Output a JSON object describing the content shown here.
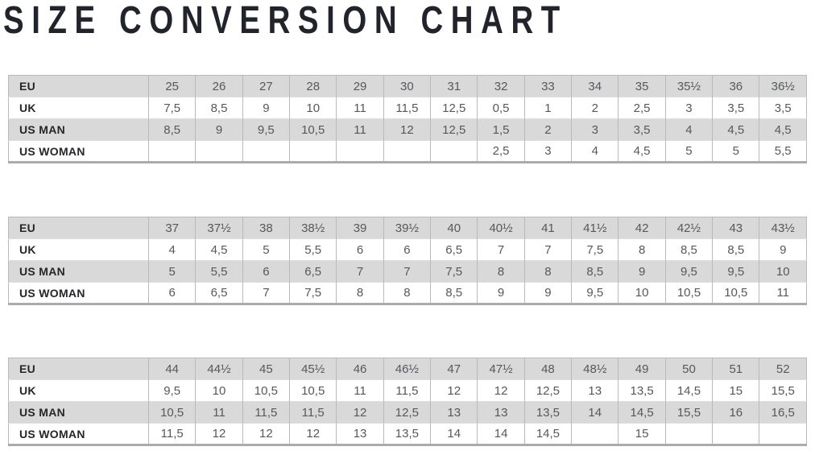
{
  "title": "SIZE CONVERSION CHART",
  "colors": {
    "title_text": "#21242b",
    "label_text": "#26262a",
    "value_text": "#55585c",
    "row_shaded_bg": "#d9d9d9",
    "row_plain_bg": "#ffffff",
    "border_light": "#b9b9b9",
    "border_strong": "#ababab"
  },
  "chart_data": [
    {
      "type": "table",
      "title": "SIZE CONVERSION CHART",
      "row_headers": [
        "EU",
        "UK",
        "US MAN",
        "US WOMAN"
      ],
      "rows": [
        [
          "25",
          "26",
          "27",
          "28",
          "29",
          "30",
          "31",
          "32",
          "33",
          "34",
          "35",
          "35½",
          "36",
          "36½"
        ],
        [
          "7,5",
          "8,5",
          "9",
          "10",
          "11",
          "11,5",
          "12,5",
          "0,5",
          "1",
          "2",
          "2,5",
          "3",
          "3,5",
          "3,5"
        ],
        [
          "8,5",
          "9",
          "9,5",
          "10,5",
          "11",
          "12",
          "12,5",
          "1,5",
          "2",
          "3",
          "3,5",
          "4",
          "4,5",
          "4,5"
        ],
        [
          "",
          "",
          "",
          "",
          "",
          "",
          "",
          "2,5",
          "3",
          "4",
          "4,5",
          "5",
          "5",
          "5,5"
        ]
      ]
    },
    {
      "type": "table",
      "row_headers": [
        "EU",
        "UK",
        "US MAN",
        "US WOMAN"
      ],
      "rows": [
        [
          "37",
          "37½",
          "38",
          "38½",
          "39",
          "39½",
          "40",
          "40½",
          "41",
          "41½",
          "42",
          "42½",
          "43",
          "43½"
        ],
        [
          "4",
          "4,5",
          "5",
          "5,5",
          "6",
          "6",
          "6,5",
          "7",
          "7",
          "7,5",
          "8",
          "8,5",
          "8,5",
          "9"
        ],
        [
          "5",
          "5,5",
          "6",
          "6,5",
          "7",
          "7",
          "7,5",
          "8",
          "8",
          "8,5",
          "9",
          "9,5",
          "9,5",
          "10"
        ],
        [
          "6",
          "6,5",
          "7",
          "7,5",
          "8",
          "8",
          "8,5",
          "9",
          "9",
          "9,5",
          "10",
          "10,5",
          "10,5",
          "11"
        ]
      ]
    },
    {
      "type": "table",
      "row_headers": [
        "EU",
        "UK",
        "US MAN",
        "US WOMAN"
      ],
      "rows": [
        [
          "44",
          "44½",
          "45",
          "45½",
          "46",
          "46½",
          "47",
          "47½",
          "48",
          "48½",
          "49",
          "50",
          "51",
          "52"
        ],
        [
          "9,5",
          "10",
          "10,5",
          "10,5",
          "11",
          "11,5",
          "12",
          "12",
          "12,5",
          "13",
          "13,5",
          "14,5",
          "15",
          "15,5"
        ],
        [
          "10,5",
          "11",
          "11,5",
          "11,5",
          "12",
          "12,5",
          "13",
          "13",
          "13,5",
          "14",
          "14,5",
          "15,5",
          "16",
          "16,5"
        ],
        [
          "11,5",
          "12",
          "12",
          "12",
          "13",
          "13,5",
          "14",
          "14",
          "14,5",
          "",
          "15",
          "",
          "",
          ""
        ]
      ]
    }
  ]
}
